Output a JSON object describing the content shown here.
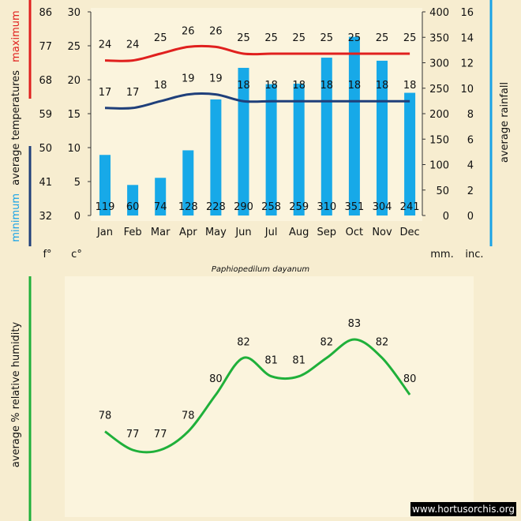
{
  "chart_data": [
    {
      "type": "bar+line",
      "months": [
        "Jan",
        "Feb",
        "Mar",
        "Apr",
        "May",
        "Jun",
        "Jul",
        "Aug",
        "Sep",
        "Oct",
        "Nov",
        "Dec"
      ],
      "rainfall_mm": [
        119,
        60,
        74,
        128,
        228,
        290,
        258,
        259,
        310,
        351,
        304,
        241
      ],
      "temp_max_c": [
        24,
        24,
        25,
        26,
        26,
        25,
        25,
        25,
        25,
        25,
        25,
        25
      ],
      "temp_min_c": [
        17,
        17,
        18,
        19,
        19,
        18,
        18,
        18,
        18,
        18,
        18,
        18
      ],
      "left_axis_f": {
        "ticks": [
          "86",
          "77",
          "68",
          "59",
          "50",
          "41",
          "32"
        ],
        "unit": "f°"
      },
      "left_axis_c": {
        "ticks": [
          "30",
          "25",
          "20",
          "15",
          "10",
          "5",
          "0"
        ],
        "unit": "c°",
        "ylim": [
          0,
          30
        ]
      },
      "right_axis_mm": {
        "ticks": [
          "400",
          "350",
          "300",
          "250",
          "200",
          "150",
          "100",
          "50",
          "0"
        ],
        "unit": "mm.",
        "ylim": [
          0,
          400
        ]
      },
      "right_axis_inc": {
        "ticks": [
          "16",
          "14",
          "12",
          "10",
          "8",
          "6",
          "4",
          "2",
          "0"
        ],
        "unit": "inc."
      },
      "left_title_parts": {
        "minimum": "minimum",
        "average_temperatures": "average  temperatures",
        "maximum": "maximum"
      },
      "right_title": "average  rainfall",
      "caption": "Paphiopedilum dayanum",
      "colors": {
        "max": "#e0201e",
        "min": "#1f3f7a",
        "bar": "#17a9e8",
        "rain_axis": "#1aa3e6"
      }
    },
    {
      "type": "line",
      "humidity_pct": [
        78,
        77,
        77,
        78,
        80,
        82,
        81,
        81,
        82,
        83,
        82,
        80
      ],
      "ylim": [
        74,
        86
      ],
      "ylabel": "average %  relative humidity",
      "colors": {
        "line": "#1fb03a",
        "axis": "#1fb03a"
      }
    }
  ],
  "watermark": "www.hortusorchis.org"
}
